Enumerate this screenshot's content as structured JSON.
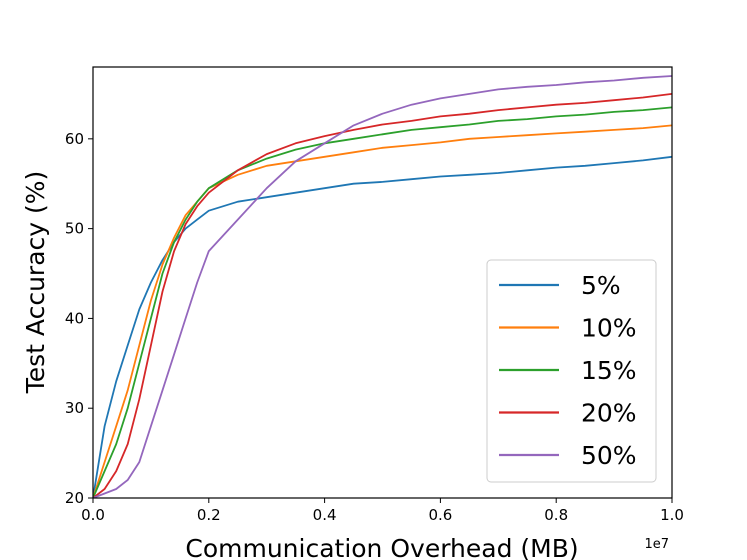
{
  "chart_data": {
    "type": "line",
    "xlabel": "Communication Overhead (MB)",
    "ylabel": "Test Accuracy (%)",
    "x_offset_label": "1e7",
    "xlim": [
      0,
      1.0
    ],
    "ylim": [
      20,
      68
    ],
    "x_ticks": [
      0.0,
      0.2,
      0.4,
      0.6,
      0.8,
      1.0
    ],
    "x_tick_labels": [
      "0.0",
      "0.2",
      "0.4",
      "0.6",
      "0.8",
      "1.0"
    ],
    "y_ticks": [
      20,
      30,
      40,
      50,
      60
    ],
    "y_tick_labels": [
      "20",
      "30",
      "40",
      "50",
      "60"
    ],
    "grid": false,
    "legend_position": "lower-right",
    "series": [
      {
        "name": "5%",
        "color": "#1f77b4",
        "x": [
          0.0,
          0.02,
          0.04,
          0.06,
          0.08,
          0.1,
          0.12,
          0.14,
          0.16,
          0.18,
          0.2,
          0.25,
          0.3,
          0.35,
          0.4,
          0.45,
          0.5,
          0.55,
          0.6,
          0.65,
          0.7,
          0.75,
          0.8,
          0.85,
          0.9,
          0.95,
          1.0
        ],
        "values": [
          20,
          28,
          33,
          37,
          41,
          44,
          46.5,
          48.5,
          50,
          51,
          52,
          53,
          53.5,
          54,
          54.5,
          55,
          55.2,
          55.5,
          55.8,
          56,
          56.2,
          56.5,
          56.8,
          57,
          57.3,
          57.6,
          58
        ]
      },
      {
        "name": "10%",
        "color": "#ff7f0e",
        "x": [
          0.0,
          0.02,
          0.04,
          0.06,
          0.08,
          0.1,
          0.12,
          0.14,
          0.16,
          0.18,
          0.2,
          0.25,
          0.3,
          0.35,
          0.4,
          0.45,
          0.5,
          0.55,
          0.6,
          0.65,
          0.7,
          0.75,
          0.8,
          0.85,
          0.9,
          0.95,
          1.0
        ],
        "values": [
          20,
          24,
          28,
          32,
          37,
          42,
          46,
          49,
          51.5,
          53,
          54.5,
          56,
          57,
          57.5,
          58,
          58.5,
          59,
          59.3,
          59.6,
          60,
          60.2,
          60.4,
          60.6,
          60.8,
          61,
          61.2,
          61.5
        ]
      },
      {
        "name": "15%",
        "color": "#2ca02c",
        "x": [
          0.0,
          0.02,
          0.04,
          0.06,
          0.08,
          0.1,
          0.12,
          0.14,
          0.16,
          0.18,
          0.2,
          0.25,
          0.3,
          0.35,
          0.4,
          0.45,
          0.5,
          0.55,
          0.6,
          0.65,
          0.7,
          0.75,
          0.8,
          0.85,
          0.9,
          0.95,
          1.0
        ],
        "values": [
          20,
          23,
          26,
          30,
          35,
          40,
          45,
          48.5,
          51,
          53,
          54.5,
          56.5,
          57.8,
          58.8,
          59.5,
          60,
          60.5,
          61,
          61.3,
          61.6,
          62,
          62.2,
          62.5,
          62.7,
          63,
          63.2,
          63.5
        ]
      },
      {
        "name": "20%",
        "color": "#d62728",
        "x": [
          0.0,
          0.02,
          0.04,
          0.06,
          0.08,
          0.1,
          0.12,
          0.14,
          0.16,
          0.18,
          0.2,
          0.25,
          0.3,
          0.35,
          0.4,
          0.45,
          0.5,
          0.55,
          0.6,
          0.65,
          0.7,
          0.75,
          0.8,
          0.85,
          0.9,
          0.95,
          1.0
        ],
        "values": [
          20,
          21,
          23,
          26,
          31,
          37,
          43,
          47.5,
          50.5,
          52.5,
          54,
          56.5,
          58.3,
          59.5,
          60.3,
          61,
          61.6,
          62,
          62.5,
          62.8,
          63.2,
          63.5,
          63.8,
          64,
          64.3,
          64.6,
          65
        ]
      },
      {
        "name": "50%",
        "color": "#9467bd",
        "x": [
          0.0,
          0.02,
          0.04,
          0.06,
          0.08,
          0.1,
          0.12,
          0.14,
          0.16,
          0.18,
          0.2,
          0.25,
          0.3,
          0.35,
          0.4,
          0.45,
          0.5,
          0.55,
          0.6,
          0.65,
          0.7,
          0.75,
          0.8,
          0.85,
          0.9,
          0.95,
          1.0
        ],
        "values": [
          20,
          20.5,
          21,
          22,
          24,
          28,
          32,
          36,
          40,
          44,
          47.5,
          51,
          54.5,
          57.5,
          59.5,
          61.5,
          62.8,
          63.8,
          64.5,
          65,
          65.5,
          65.8,
          66,
          66.3,
          66.5,
          66.8,
          67
        ]
      }
    ]
  }
}
